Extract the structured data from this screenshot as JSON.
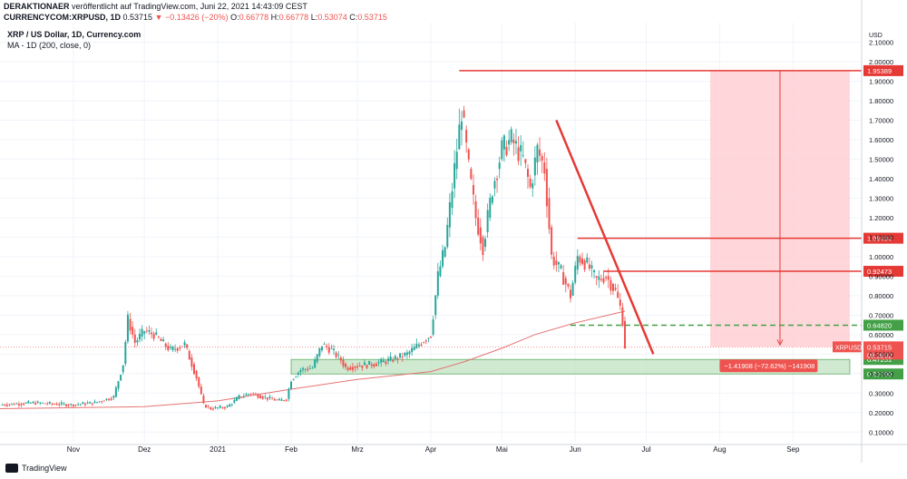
{
  "header": {
    "author": "DERAKTIONAER",
    "published": "veröffentlicht auf TradingView.com, Juni 22, 2021 14:43:09 CEST",
    "symbol": "CURRENCYCOM:XRPUSD, 1D",
    "last": "0.53715",
    "change": "▼ −0.13426 (−20%)",
    "ohlc_o_label": "O:",
    "ohlc_o": "0.66778",
    "ohlc_h_label": "H:",
    "ohlc_h": "0.66778",
    "ohlc_l_label": "L:",
    "ohlc_l": "0.53074",
    "ohlc_c_label": "C:",
    "ohlc_c": "0.53715"
  },
  "legend": {
    "line1": "XRP / US Dollar, 1D, Currency.com",
    "line2": "MA - 1D (200, close, 0)"
  },
  "footer": {
    "brand": "TradingView"
  },
  "colors": {
    "up": "#26a69a",
    "down": "#ef5350",
    "ma": "#e57373",
    "level": "#e53935",
    "support": "#43a047",
    "zone_green": "#c8e6c9",
    "zone_red": "#ffcdd2"
  },
  "chart_data": {
    "type": "candlestick",
    "title": "XRP / US Dollar, 1D, Currency.com",
    "ylabel": "USD",
    "y_ticks": [
      "2.10000",
      "2.00000",
      "1.90000",
      "1.80000",
      "1.70000",
      "1.60000",
      "1.50000",
      "1.40000",
      "1.30000",
      "1.20000",
      "1.10000",
      "1.00000",
      "0.90000",
      "0.80000",
      "0.70000",
      "0.60000",
      "0.50000",
      "0.40000",
      "0.30000",
      "0.20000",
      "0.10000"
    ],
    "y_tick_values": [
      2.1,
      2.0,
      1.9,
      1.8,
      1.7,
      1.6,
      1.5,
      1.4,
      1.3,
      1.2,
      1.1,
      1.0,
      0.9,
      0.8,
      0.7,
      0.6,
      0.5,
      0.4,
      0.3,
      0.2,
      0.1
    ],
    "x_ticks": [
      "Nov",
      "Dez",
      "2021",
      "Feb",
      "Mrz",
      "Apr",
      "Mai",
      "Jun",
      "Jul",
      "Aug",
      "Sep"
    ],
    "x_tick_dates": [
      "2020-11-01",
      "2020-12-01",
      "2021-01-01",
      "2021-02-01",
      "2021-03-01",
      "2021-04-01",
      "2021-05-01",
      "2021-06-01",
      "2021-07-01",
      "2021-08-01",
      "2021-09-01"
    ],
    "ylim": [
      0.05,
      2.2
    ],
    "xlim": [
      "2020-10-01",
      "2021-09-30"
    ],
    "price_series": [
      [
        "2020-10-01",
        0.24
      ],
      [
        "2020-10-15",
        0.25
      ],
      [
        "2020-10-31",
        0.24
      ],
      [
        "2020-11-10",
        0.25
      ],
      [
        "2020-11-18",
        0.28
      ],
      [
        "2020-11-22",
        0.45
      ],
      [
        "2020-11-24",
        0.68
      ],
      [
        "2020-11-27",
        0.56
      ],
      [
        "2020-12-01",
        0.62
      ],
      [
        "2020-12-05",
        0.6
      ],
      [
        "2020-12-12",
        0.52
      ],
      [
        "2020-12-18",
        0.55
      ],
      [
        "2020-12-23",
        0.38
      ],
      [
        "2020-12-26",
        0.24
      ],
      [
        "2020-12-29",
        0.22
      ],
      [
        "2021-01-05",
        0.23
      ],
      [
        "2021-01-10",
        0.28
      ],
      [
        "2021-01-15",
        0.3
      ],
      [
        "2021-01-20",
        0.28
      ],
      [
        "2021-01-27",
        0.26
      ],
      [
        "2021-01-30",
        0.27
      ],
      [
        "2021-02-01",
        0.37
      ],
      [
        "2021-02-05",
        0.42
      ],
      [
        "2021-02-10",
        0.43
      ],
      [
        "2021-02-14",
        0.55
      ],
      [
        "2021-02-18",
        0.52
      ],
      [
        "2021-02-22",
        0.47
      ],
      [
        "2021-02-24",
        0.43
      ],
      [
        "2021-03-01",
        0.44
      ],
      [
        "2021-03-08",
        0.45
      ],
      [
        "2021-03-15",
        0.47
      ],
      [
        "2021-03-22",
        0.5
      ],
      [
        "2021-03-28",
        0.56
      ],
      [
        "2021-04-01",
        0.6
      ],
      [
        "2021-04-04",
        0.9
      ],
      [
        "2021-04-07",
        1.05
      ],
      [
        "2021-04-10",
        1.35
      ],
      [
        "2021-04-14",
        1.75
      ],
      [
        "2021-04-17",
        1.45
      ],
      [
        "2021-04-20",
        1.2
      ],
      [
        "2021-04-23",
        1.05
      ],
      [
        "2021-04-27",
        1.35
      ],
      [
        "2021-05-01",
        1.55
      ],
      [
        "2021-05-05",
        1.6
      ],
      [
        "2021-05-10",
        1.5
      ],
      [
        "2021-05-13",
        1.35
      ],
      [
        "2021-05-16",
        1.55
      ],
      [
        "2021-05-19",
        1.45
      ],
      [
        "2021-05-22",
        1.0
      ],
      [
        "2021-05-26",
        0.92
      ],
      [
        "2021-05-30",
        0.8
      ],
      [
        "2021-06-02",
        1.0
      ],
      [
        "2021-06-06",
        0.96
      ],
      [
        "2021-06-10",
        0.88
      ],
      [
        "2021-06-14",
        0.9
      ],
      [
        "2021-06-18",
        0.82
      ],
      [
        "2021-06-20",
        0.74
      ],
      [
        "2021-06-21",
        0.67
      ],
      [
        "2021-06-22",
        0.54
      ]
    ],
    "ma_series": [
      [
        "2020-10-01",
        0.22
      ],
      [
        "2020-12-01",
        0.23
      ],
      [
        "2021-01-01",
        0.26
      ],
      [
        "2021-02-01",
        0.32
      ],
      [
        "2021-03-01",
        0.37
      ],
      [
        "2021-04-01",
        0.41
      ],
      [
        "2021-04-15",
        0.46
      ],
      [
        "2021-05-01",
        0.53
      ],
      [
        "2021-05-15",
        0.6
      ],
      [
        "2021-06-01",
        0.66
      ],
      [
        "2021-06-22",
        0.72
      ]
    ],
    "resistance_levels": [
      {
        "label": "1.95389",
        "value": 1.95389,
        "from": "2021-04-13"
      },
      {
        "label": "1.09434",
        "value": 1.09434,
        "from": "2021-06-02"
      },
      {
        "label": "0.92473",
        "value": 0.92473,
        "from": "2021-06-13"
      }
    ],
    "dashed_level": {
      "label": "0.64820",
      "value": 0.6482,
      "from": "2021-05-30"
    },
    "support_zone": {
      "top_label": "0.47251",
      "top": 0.47251,
      "bottom_label": "0.39798",
      "bottom": 0.39798,
      "from": "2021-02-01",
      "to": "2021-09-25"
    },
    "trendline": {
      "from": [
        "2021-05-24",
        1.7
      ],
      "to": [
        "2021-07-04",
        0.5
      ]
    },
    "measure_zone": {
      "from": "2021-07-28",
      "to": "2021-09-25",
      "top": 1.95389,
      "bottom": 0.53715
    },
    "measure_label": "−1.41908 (−72.62%) −141908",
    "current_price": {
      "symbol": "XRPUSD",
      "label": "0.53715",
      "value": 0.53715,
      "countdown": "08:16:52"
    }
  }
}
